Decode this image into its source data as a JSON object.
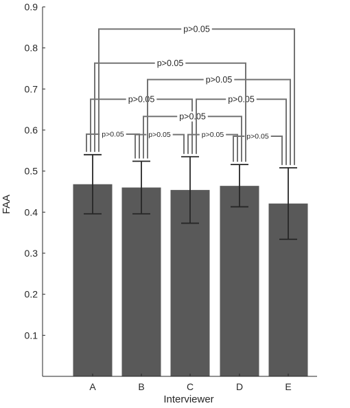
{
  "chart_data": {
    "type": "bar",
    "title": "",
    "xlabel": "Interviewer",
    "ylabel": "FAA",
    "categories": [
      "A",
      "B",
      "C",
      "D",
      "E"
    ],
    "values": [
      0.468,
      0.46,
      0.454,
      0.464,
      0.421
    ],
    "error_low": [
      0.396,
      0.396,
      0.373,
      0.413,
      0.334
    ],
    "error_high": [
      0.54,
      0.524,
      0.535,
      0.516,
      0.508
    ],
    "ylim": [
      0,
      0.9
    ],
    "yticks": [
      0.1,
      0.2,
      0.3,
      0.4,
      0.5,
      0.6,
      0.7,
      0.8,
      0.9
    ],
    "grid": false,
    "legend": "none",
    "bar_color": "#595959",
    "comparisons": [
      {
        "from": "A",
        "to": "B",
        "label": "p>0.05",
        "level": 0.59
      },
      {
        "from": "B",
        "to": "C",
        "label": "p>0.05",
        "level": 0.589
      },
      {
        "from": "C",
        "to": "D",
        "label": "p>0.05",
        "level": 0.589
      },
      {
        "from": "D",
        "to": "E",
        "label": "p>0.05",
        "level": 0.585
      },
      {
        "from": "A",
        "to": "C",
        "label": "p>0.05",
        "level": 0.675
      },
      {
        "from": "B",
        "to": "D",
        "label": "p>0.05",
        "level": 0.633
      },
      {
        "from": "C",
        "to": "E",
        "label": "p>0.05",
        "level": 0.675
      },
      {
        "from": "B",
        "to": "E",
        "label": "p>0.05",
        "level": 0.723
      },
      {
        "from": "A",
        "to": "D",
        "label": "p>0.05",
        "level": 0.763
      },
      {
        "from": "A",
        "to": "E",
        "label": "p>0.05",
        "level": 0.846
      }
    ]
  }
}
